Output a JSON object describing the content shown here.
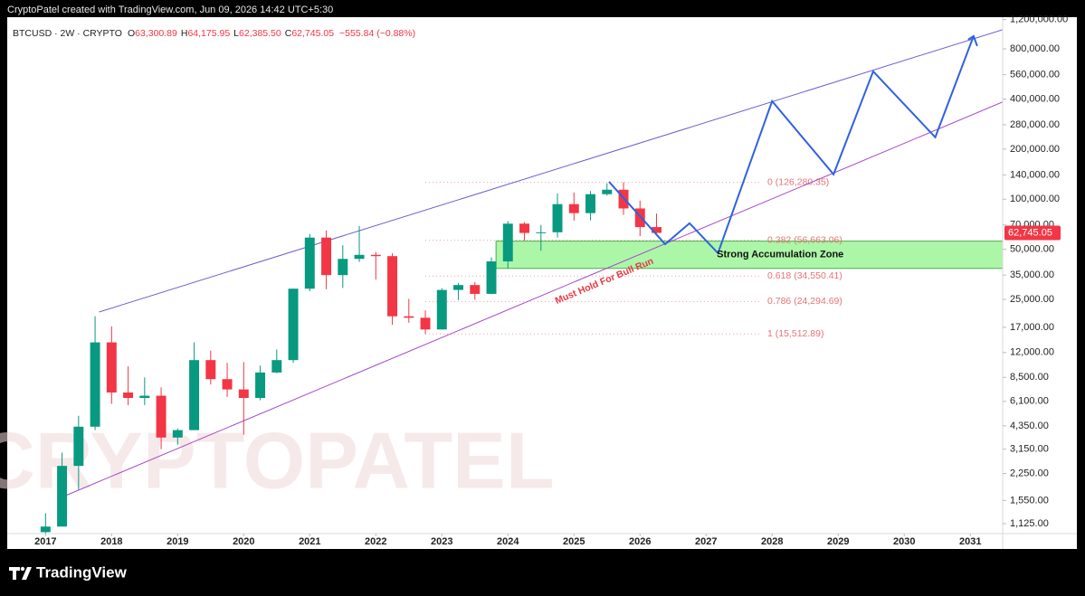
{
  "chart_data": {
    "type": "candlestick",
    "credit": "CryptoPatel created with TradingView.com, Jun 09, 2026 14:42 UTC+5:30",
    "symbol": "BTCUSD · 2W · CRYPTO",
    "ohlc_labels": [
      {
        "k": "O",
        "v": "63,300.89"
      },
      {
        "k": "H",
        "v": "64,175.95"
      },
      {
        "k": "L",
        "v": "62,385.50"
      },
      {
        "k": "C",
        "v": "62,745.05"
      }
    ],
    "change": "−555.84 (−0.88%)",
    "watermark": "CRYPTOPATEL",
    "brand": "TradingView",
    "log_scale": true,
    "xlim": [
      2016.42,
      2031.49
    ],
    "ylim": [
      980,
      1240000
    ],
    "xticks": [
      2017,
      2018,
      2019,
      2020,
      2021,
      2022,
      2023,
      2024,
      2025,
      2026,
      2027,
      2028,
      2029,
      2030,
      2031
    ],
    "yticks": [
      {
        "value": 1125,
        "label": "1,125.00"
      },
      {
        "value": 1550,
        "label": "1,550.00"
      },
      {
        "value": 2250,
        "label": "2,250.00"
      },
      {
        "value": 3150,
        "label": "3,150.00"
      },
      {
        "value": 4350,
        "label": "4,350.00"
      },
      {
        "value": 6100,
        "label": "6,100.00"
      },
      {
        "value": 8500,
        "label": "8,500.00"
      },
      {
        "value": 12000,
        "label": "12,000.00"
      },
      {
        "value": 17000,
        "label": "17,000.00"
      },
      {
        "value": 25000,
        "label": "25,000.00"
      },
      {
        "value": 35000,
        "label": "35,000.00"
      },
      {
        "value": 50000,
        "label": "50,000.00"
      },
      {
        "value": 70000,
        "label": "70,000.00"
      },
      {
        "value": 100000,
        "label": "100,000.00"
      },
      {
        "value": 140000,
        "label": "140,000.00"
      },
      {
        "value": 200000,
        "label": "200,000.00"
      },
      {
        "value": 280000,
        "label": "280,000.00"
      },
      {
        "value": 400000,
        "label": "400,000.00"
      },
      {
        "value": 560000,
        "label": "560,000.00"
      },
      {
        "value": 800000,
        "label": "800,000.00"
      },
      {
        "value": 1200000,
        "label": "1,200,000.00"
      }
    ],
    "up_color": "#089981",
    "down_color": "#f23645",
    "x": [
      2017,
      2017.25,
      2017.5,
      2017.75,
      2018,
      2018.25,
      2018.5,
      2018.75,
      2019,
      2019.25,
      2019.5,
      2019.75,
      2020,
      2020.25,
      2020.5,
      2020.75,
      2021,
      2021.25,
      2021.5,
      2021.75,
      2022,
      2022.25,
      2022.5,
      2022.75,
      2023,
      2023.25,
      2023.5,
      2023.75,
      2024,
      2024.25,
      2024.5,
      2024.75,
      2025,
      2025.25,
      2025.5,
      2025.75,
      2026,
      2026.25
    ],
    "open": [
      1000,
      1080,
      2500,
      4300,
      13800,
      6900,
      6400,
      6600,
      3700,
      4100,
      10800,
      8300,
      7200,
      6400,
      9100,
      10800,
      29000,
      58800,
      35000,
      43800,
      46300,
      45500,
      19800,
      19400,
      16500,
      28500,
      30500,
      27000,
      42300,
      71300,
      62700,
      63300,
      93400,
      82500,
      107200,
      114000,
      88000,
      68000
    ],
    "high": [
      1300,
      3000,
      5000,
      19800,
      17200,
      9900,
      8500,
      7400,
      4200,
      13800,
      12300,
      10400,
      10500,
      10000,
      12500,
      29000,
      61800,
      64800,
      52900,
      69000,
      48200,
      47400,
      25200,
      21500,
      29200,
      31400,
      31800,
      44700,
      73800,
      72800,
      70000,
      108300,
      109600,
      112000,
      124500,
      126300,
      98000,
      82000
    ],
    "low": [
      900,
      1080,
      1800,
      4100,
      5900,
      5800,
      5800,
      3150,
      3350,
      4100,
      7700,
      6500,
      3850,
      6200,
      9000,
      10400,
      28000,
      28800,
      29300,
      42000,
      32900,
      17600,
      18100,
      15500,
      16500,
      24800,
      24900,
      26900,
      38500,
      56500,
      49000,
      58900,
      74400,
      74500,
      105000,
      80500,
      60000,
      62400
    ],
    "close": [
      1080,
      2500,
      4300,
      13800,
      6900,
      6400,
      6600,
      3700,
      4100,
      10800,
      8300,
      7200,
      6400,
      9100,
      10800,
      29000,
      58800,
      35000,
      43800,
      46300,
      45500,
      19800,
      19400,
      16500,
      28500,
      30500,
      27000,
      42300,
      71300,
      62700,
      63300,
      93400,
      82500,
      107200,
      114000,
      88000,
      68000,
      62745.05
    ],
    "last_price": {
      "value": 62745.05,
      "label": "62,745.05"
    },
    "channel": [
      {
        "color": "#6b5fd3",
        "x": [
          2017.81,
          2031.49
        ],
        "y": [
          21000,
          1043000
        ]
      },
      {
        "color": "#a845c8",
        "x": [
          2017.27,
          2031.49
        ],
        "y": [
          1637,
          383700
        ]
      }
    ],
    "fib_levels": [
      {
        "value": 126280.35,
        "label": "0 (126,280.35)"
      },
      {
        "value": 56663.06,
        "label": "0.382 (56,663.06)"
      },
      {
        "value": 34550.41,
        "label": "0.618 (34,550.41)"
      },
      {
        "value": 24294.69,
        "label": "0.786 (24,294.69)"
      },
      {
        "value": 15512.89,
        "label": "1 (15,512.89)"
      }
    ],
    "zone": {
      "label": "Strong Accumulation Zone",
      "low": 38400,
      "high": 56000,
      "start": 2023.82,
      "color": "#9ef59a"
    },
    "projection": {
      "color": "#2f62e0",
      "x": [
        2025.53,
        2026.38,
        2026.75,
        2027.18,
        2028.0,
        2028.93,
        2029.53,
        2030.47,
        2031.05
      ],
      "y": [
        127400,
        53700,
        71700,
        47400,
        388000,
        141000,
        586000,
        235500,
        955000
      ]
    },
    "support_label": "Must Hold For Bull Run"
  }
}
